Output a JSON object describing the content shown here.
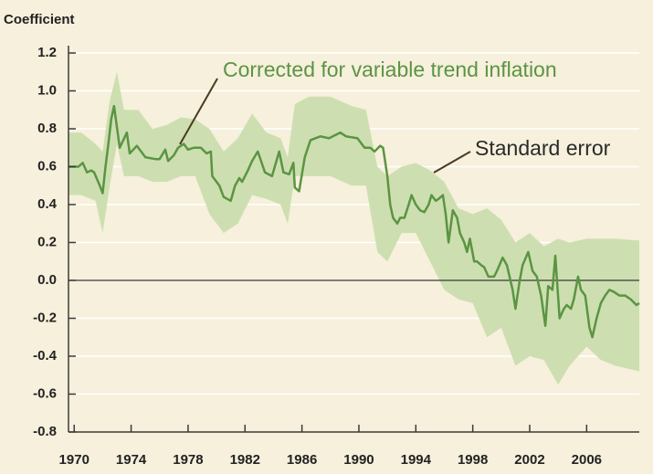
{
  "chart_data": {
    "type": "line",
    "y_axis_label": "Coefficient",
    "xlim": [
      1969.6,
      2009.7
    ],
    "xticks": [
      1970,
      1974,
      1978,
      1982,
      1986,
      1990,
      1994,
      1998,
      2002,
      2006
    ],
    "ylim": [
      -0.8,
      1.2
    ],
    "yticks": [
      -0.8,
      -0.6,
      -0.4,
      -0.2,
      {
        "value": 0,
        "label": "0.0"
      },
      0.2,
      0.4,
      0.6,
      0.8,
      {
        "value": 1,
        "label": "1.0"
      },
      1.2
    ],
    "grid": true,
    "series": [
      {
        "name": "Corrected for variable trend inflation",
        "color": "#5b9443",
        "x": [
          1969.6,
          1970.3,
          1970.6,
          1970.9,
          1971.2,
          1971.4,
          1971.8,
          1972.0,
          1972.2,
          1972.4,
          1972.6,
          1972.8,
          1973.2,
          1973.7,
          1973.9,
          1974.4,
          1975.0,
          1975.7,
          1976.0,
          1976.4,
          1976.6,
          1977.0,
          1977.3,
          1977.7,
          1978.0,
          1978.4,
          1978.9,
          1979.3,
          1979.6,
          1979.7,
          1980.2,
          1980.5,
          1981.0,
          1981.3,
          1981.6,
          1981.8,
          1982.2,
          1982.5,
          1982.9,
          1983.4,
          1983.9,
          1984.4,
          1984.7,
          1985.1,
          1985.4,
          1985.5,
          1985.8,
          1986.2,
          1986.6,
          1987.3,
          1987.9,
          1988.7,
          1989.1,
          1989.9,
          1990.4,
          1990.8,
          1991.1,
          1991.5,
          1991.7,
          1992.0,
          1992.2,
          1992.4,
          1992.7,
          1992.9,
          1993.2,
          1993.5,
          1993.7,
          1994.0,
          1994.3,
          1994.6,
          1994.9,
          1995.1,
          1995.4,
          1995.6,
          1995.9,
          1996.1,
          1996.3,
          1996.6,
          1996.9,
          1997.1,
          1997.4,
          1997.6,
          1997.8,
          1998.1,
          1998.3,
          1998.6,
          1998.8,
          1999.1,
          1999.5,
          1999.7,
          2000.1,
          2000.4,
          2000.8,
          2001.0,
          2001.3,
          2001.5,
          2001.9,
          2002.2,
          2002.5,
          2002.8,
          2003.1,
          2003.3,
          2003.6,
          2003.8,
          2004.1,
          2004.4,
          2004.6,
          2004.9,
          2005.1,
          2005.4,
          2005.6,
          2005.9,
          2006.2,
          2006.4,
          2006.7,
          2007.0,
          2007.3,
          2007.6,
          2007.9,
          2008.3,
          2008.7,
          2009.1,
          2009.5,
          2009.7
        ],
        "values": [
          0.6,
          0.6,
          0.62,
          0.57,
          0.58,
          0.57,
          0.5,
          0.46,
          0.6,
          0.72,
          0.85,
          0.92,
          0.7,
          0.78,
          0.67,
          0.71,
          0.65,
          0.64,
          0.64,
          0.69,
          0.63,
          0.66,
          0.7,
          0.72,
          0.69,
          0.7,
          0.7,
          0.67,
          0.68,
          0.55,
          0.5,
          0.44,
          0.42,
          0.5,
          0.54,
          0.52,
          0.58,
          0.63,
          0.68,
          0.57,
          0.55,
          0.68,
          0.57,
          0.56,
          0.62,
          0.49,
          0.47,
          0.65,
          0.74,
          0.76,
          0.75,
          0.78,
          0.76,
          0.75,
          0.7,
          0.7,
          0.68,
          0.71,
          0.7,
          0.55,
          0.4,
          0.33,
          0.3,
          0.33,
          0.33,
          0.4,
          0.45,
          0.4,
          0.37,
          0.36,
          0.4,
          0.45,
          0.42,
          0.43,
          0.45,
          0.35,
          0.2,
          0.37,
          0.33,
          0.25,
          0.2,
          0.15,
          0.22,
          0.1,
          0.1,
          0.08,
          0.07,
          0.02,
          0.02,
          0.05,
          0.12,
          0.08,
          -0.05,
          -0.15,
          0.0,
          0.08,
          0.15,
          0.05,
          0.02,
          -0.08,
          -0.24,
          -0.03,
          -0.05,
          0.13,
          -0.2,
          -0.15,
          -0.13,
          -0.15,
          -0.1,
          0.02,
          -0.05,
          -0.08,
          -0.25,
          -0.3,
          -0.2,
          -0.12,
          -0.08,
          -0.05,
          -0.06,
          -0.08,
          -0.08,
          -0.1,
          -0.13,
          -0.12
        ]
      },
      {
        "name": "Standard error",
        "color": "#cddfb0",
        "x": [
          1969.6,
          1970.5,
          1971.5,
          1972.0,
          1972.5,
          1973.0,
          1973.5,
          1974.5,
          1975.5,
          1976.5,
          1977.5,
          1978.5,
          1979.5,
          1980.5,
          1981.5,
          1982.5,
          1983.5,
          1984.5,
          1985.0,
          1985.5,
          1986.5,
          1988.0,
          1989.5,
          1990.5,
          1991.3,
          1992.0,
          1993.0,
          1994.0,
          1995.0,
          1996.0,
          1997.0,
          1998.0,
          1999.0,
          2000.0,
          2001.0,
          2002.0,
          2003.0,
          2004.0,
          2004.8,
          2006.0,
          2007.0,
          2008.0,
          2009.7
        ],
        "lower": [
          0.45,
          0.45,
          0.42,
          0.25,
          0.5,
          0.72,
          0.55,
          0.55,
          0.52,
          0.52,
          0.55,
          0.55,
          0.35,
          0.25,
          0.3,
          0.45,
          0.43,
          0.4,
          0.3,
          0.55,
          0.55,
          0.55,
          0.5,
          0.5,
          0.15,
          0.1,
          0.25,
          0.25,
          0.1,
          -0.05,
          -0.1,
          -0.12,
          -0.3,
          -0.25,
          -0.45,
          -0.4,
          -0.42,
          -0.55,
          -0.45,
          -0.35,
          -0.42,
          -0.45,
          -0.48
        ],
        "upper": [
          0.78,
          0.78,
          0.72,
          0.68,
          0.95,
          1.1,
          0.9,
          0.9,
          0.8,
          0.82,
          0.86,
          0.85,
          0.8,
          0.68,
          0.75,
          0.88,
          0.78,
          0.75,
          0.65,
          0.93,
          0.97,
          0.97,
          0.92,
          0.9,
          0.6,
          0.55,
          0.6,
          0.62,
          0.58,
          0.52,
          0.38,
          0.35,
          0.38,
          0.32,
          0.2,
          0.25,
          0.18,
          0.22,
          0.2,
          0.22,
          0.22,
          0.22,
          0.21
        ]
      }
    ]
  }
}
